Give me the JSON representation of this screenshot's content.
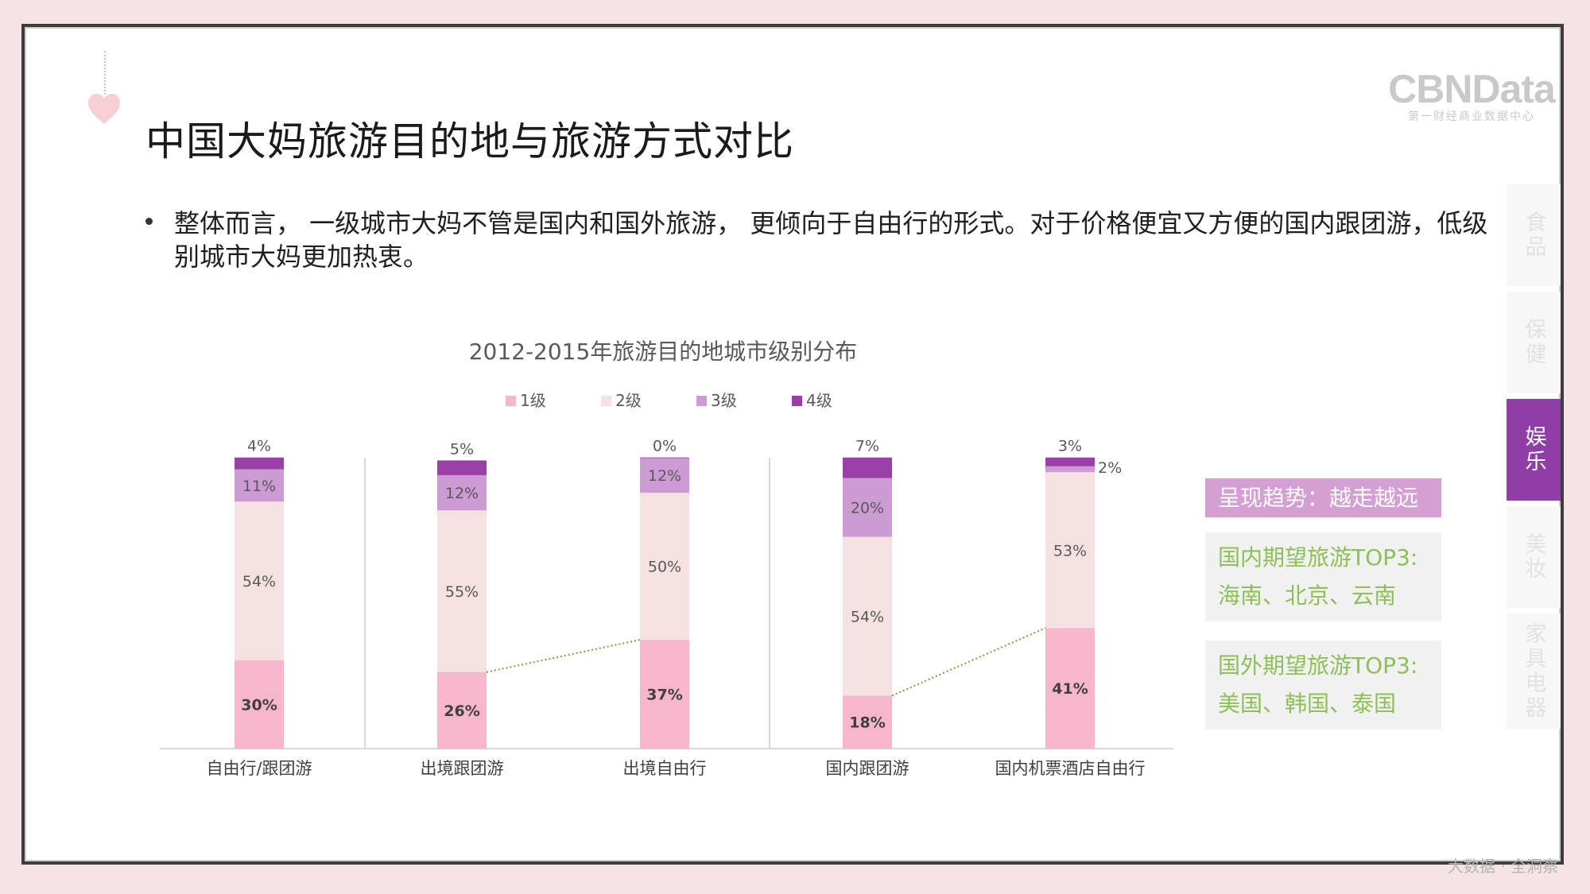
{
  "slide": {
    "title": "中国大妈旅游目的地与旅游方式对比",
    "bullet": "整体而言， 一级城市大妈不管是国内和国外旅游， 更倾向于自由行的形式。对于价格便宜又方便的国内跟团游，低级别城市大妈更加热衷。",
    "logo": {
      "main": "CBNData",
      "sub": "第一财经商业数据中心"
    },
    "footer": "大数据 · 全洞察"
  },
  "side_tabs": [
    {
      "label": "食品",
      "active": false
    },
    {
      "label": "保健",
      "active": false
    },
    {
      "label": "娱乐",
      "active": true
    },
    {
      "label": "美妆",
      "active": false
    },
    {
      "label": "家具电器",
      "active": false
    }
  ],
  "insights": {
    "header": "呈现趋势：越走越远",
    "domestic": {
      "line1": "国内期望旅游TOP3:",
      "line2": "海南、北京、云南"
    },
    "overseas": {
      "line1": "国外期望旅游TOP3:",
      "line2": "美国、韩国、泰国"
    }
  },
  "chart_data": {
    "type": "bar",
    "stacked": true,
    "title": "2012-2015年旅游目的地城市级别分布",
    "categories": [
      "自由行/跟团游",
      "出境跟团游",
      "出境自由行",
      "国内跟团游",
      "国内机票酒店自由行"
    ],
    "series": [
      {
        "name": "1级",
        "color": "#f8b6cc",
        "values": [
          30,
          26,
          37,
          18,
          41
        ]
      },
      {
        "name": "2级",
        "color": "#f5e1e1",
        "values": [
          54,
          55,
          50,
          54,
          53
        ]
      },
      {
        "name": "3级",
        "color": "#cc9bd3",
        "values": [
          11,
          12,
          12,
          20,
          2
        ]
      },
      {
        "name": "4级",
        "color": "#9b3fa8",
        "values": [
          4,
          5,
          0,
          7,
          3
        ]
      }
    ],
    "ylim": [
      0,
      100
    ],
    "xlabel": "",
    "ylabel": "",
    "legend": "top",
    "percent_sign": "%"
  }
}
